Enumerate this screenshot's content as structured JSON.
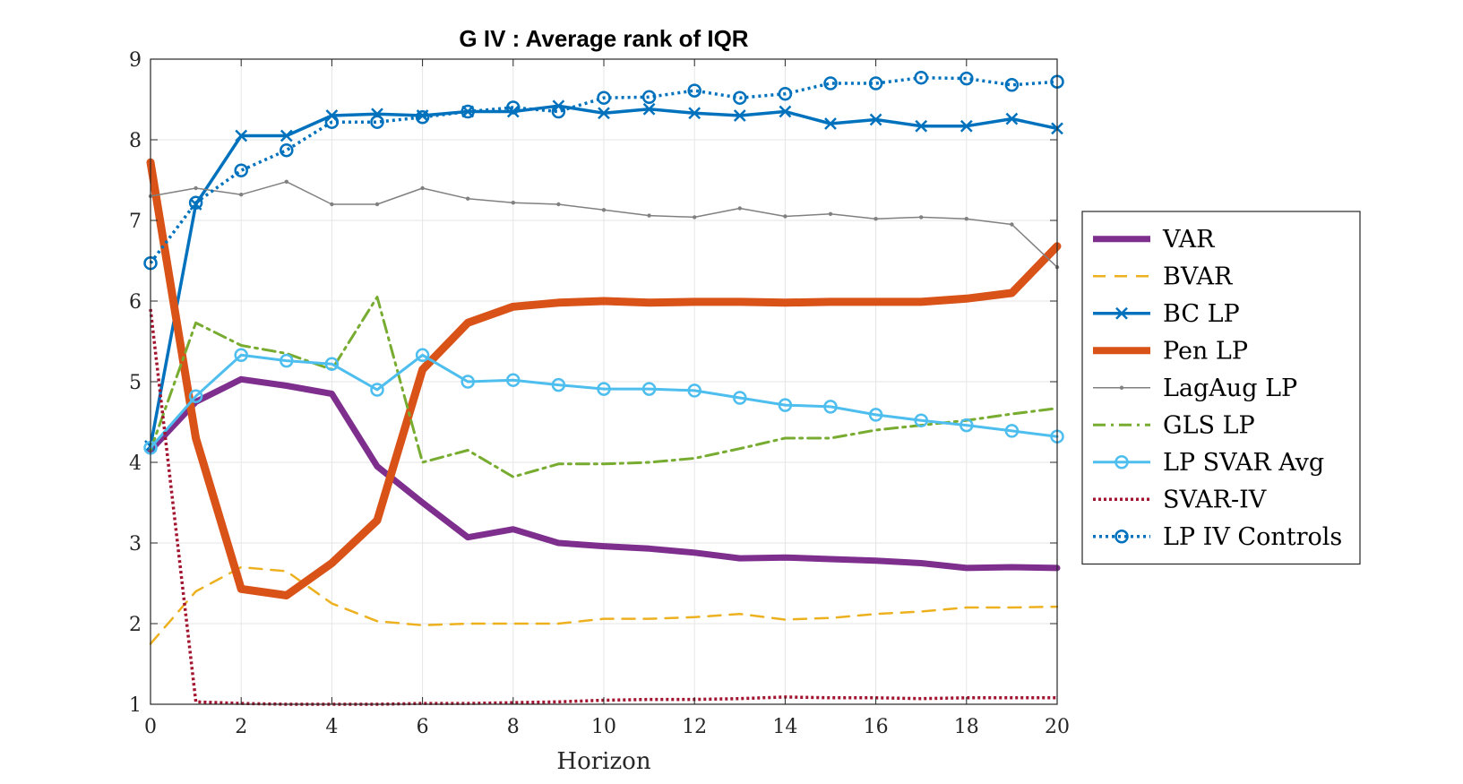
{
  "chart_data": {
    "type": "line",
    "title": "G IV : Average rank of IQR",
    "xlabel": "Horizon",
    "ylabel": "",
    "xlim": [
      0,
      20
    ],
    "ylim": [
      1,
      9
    ],
    "xticks": [
      0,
      2,
      4,
      6,
      8,
      10,
      12,
      14,
      16,
      18,
      20
    ],
    "yticks": [
      1,
      2,
      3,
      4,
      5,
      6,
      7,
      8,
      9
    ],
    "grid": true,
    "legend_position": "right outside",
    "x": [
      0,
      1,
      2,
      3,
      4,
      5,
      6,
      7,
      8,
      9,
      10,
      11,
      12,
      13,
      14,
      15,
      16,
      17,
      18,
      19,
      20
    ],
    "series": [
      {
        "name": "VAR",
        "color": "#7E2F8E",
        "style": "solid-thick",
        "values": [
          4.15,
          4.75,
          5.03,
          4.95,
          4.85,
          3.95,
          3.5,
          3.07,
          3.17,
          3.0,
          2.96,
          2.93,
          2.88,
          2.81,
          2.82,
          2.8,
          2.78,
          2.75,
          2.69,
          2.7,
          2.69
        ]
      },
      {
        "name": "BVAR",
        "color": "#EDB120",
        "style": "dashed",
        "values": [
          1.75,
          2.4,
          2.7,
          2.65,
          2.25,
          2.03,
          1.98,
          2.0,
          2.0,
          2.0,
          2.06,
          2.06,
          2.08,
          2.12,
          2.05,
          2.07,
          2.12,
          2.15,
          2.2,
          2.2,
          2.21
        ]
      },
      {
        "name": "BC LP",
        "color": "#0072BD",
        "style": "solid-x",
        "values": [
          4.2,
          7.2,
          8.05,
          8.05,
          8.3,
          8.32,
          8.3,
          8.35,
          8.35,
          8.42,
          8.33,
          8.38,
          8.33,
          8.3,
          8.35,
          8.2,
          8.25,
          8.17,
          8.17,
          8.26,
          8.14
        ]
      },
      {
        "name": "Pen LP",
        "color": "#D95319",
        "style": "solid-thicker",
        "values": [
          7.72,
          4.3,
          2.43,
          2.35,
          2.75,
          3.28,
          5.15,
          5.73,
          5.93,
          5.98,
          6.0,
          5.98,
          5.99,
          5.99,
          5.98,
          5.99,
          5.99,
          5.99,
          6.03,
          6.1,
          6.68
        ]
      },
      {
        "name": "LagAug LP",
        "color": "#808080",
        "style": "thin-dot",
        "values": [
          7.3,
          7.4,
          7.32,
          7.48,
          7.2,
          7.2,
          7.4,
          7.27,
          7.22,
          7.2,
          7.13,
          7.06,
          7.04,
          7.15,
          7.05,
          7.08,
          7.02,
          7.04,
          7.02,
          6.95,
          6.42
        ]
      },
      {
        "name": "GLS LP",
        "color": "#77AC30",
        "style": "dashdot",
        "values": [
          4.15,
          5.73,
          5.45,
          5.35,
          5.15,
          6.05,
          4.0,
          4.15,
          3.82,
          3.98,
          3.98,
          4.0,
          4.05,
          4.17,
          4.3,
          4.3,
          4.4,
          4.46,
          4.52,
          4.6,
          4.67
        ]
      },
      {
        "name": "LP SVAR Avg",
        "color": "#4DBEEE",
        "style": "solid-o",
        "values": [
          4.18,
          4.82,
          5.33,
          5.26,
          5.22,
          4.9,
          5.33,
          5.0,
          5.02,
          4.96,
          4.91,
          4.91,
          4.89,
          4.8,
          4.71,
          4.69,
          4.59,
          4.52,
          4.46,
          4.39,
          4.32
        ]
      },
      {
        "name": "SVAR-IV",
        "color": "#A2142F",
        "style": "dotted",
        "values": [
          5.9,
          1.03,
          1.01,
          1.0,
          1.0,
          1.0,
          1.01,
          1.01,
          1.02,
          1.03,
          1.05,
          1.06,
          1.06,
          1.07,
          1.09,
          1.08,
          1.08,
          1.07,
          1.08,
          1.08,
          1.08
        ]
      },
      {
        "name": "LP IV Controls",
        "color": "#0072BD",
        "style": "dotted-o",
        "values": [
          6.47,
          7.22,
          7.62,
          7.87,
          8.22,
          8.22,
          8.28,
          8.35,
          8.4,
          8.35,
          8.52,
          8.53,
          8.61,
          8.52,
          8.57,
          8.7,
          8.7,
          8.77,
          8.76,
          8.68,
          8.72
        ]
      }
    ]
  }
}
